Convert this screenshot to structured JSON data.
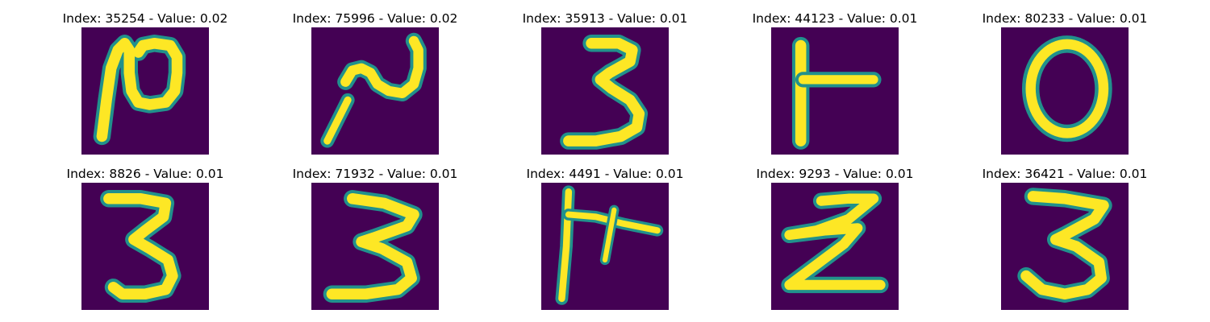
{
  "colors": {
    "background": "#440154",
    "stroke_edge": "#21918c",
    "stroke_core": "#fde725"
  },
  "panels": [
    {
      "title": "Index: 35254 - Value: 0.02"
    },
    {
      "title": "Index: 75996 - Value: 0.02"
    },
    {
      "title": "Index: 35913 - Value: 0.01"
    },
    {
      "title": "Index: 44123 - Value: 0.01"
    },
    {
      "title": "Index: 80233 - Value: 0.01"
    },
    {
      "title": "Index: 8826 - Value: 0.01"
    },
    {
      "title": "Index: 71932 - Value: 0.01"
    },
    {
      "title": "Index: 4491 - Value: 0.01"
    },
    {
      "title": "Index: 9293 - Value: 0.01"
    },
    {
      "title": "Index: 36421 - Value: 0.01"
    }
  ]
}
